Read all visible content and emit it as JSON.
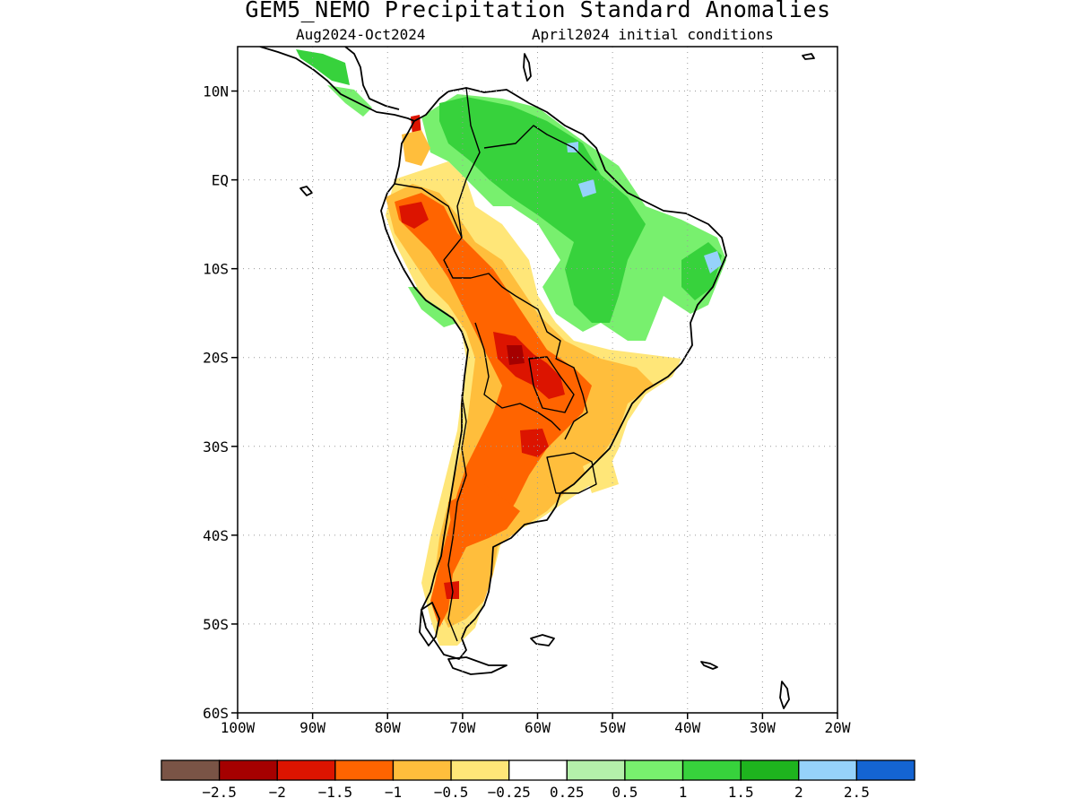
{
  "title": "GEM5_NEMO Precipitation Standard Anomalies",
  "subtitle_left": "Aug2024-Oct2024",
  "subtitle_right": "April2024 initial conditions",
  "map": {
    "lon_range": [
      -100,
      -20
    ],
    "lat_range": [
      -60,
      15
    ],
    "lat_ticks": [
      {
        "value": 10,
        "label": "10N"
      },
      {
        "value": 0,
        "label": "EQ"
      },
      {
        "value": -10,
        "label": "10S"
      },
      {
        "value": -20,
        "label": "20S"
      },
      {
        "value": -30,
        "label": "30S"
      },
      {
        "value": -40,
        "label": "40S"
      },
      {
        "value": -50,
        "label": "50S"
      },
      {
        "value": -60,
        "label": "60S"
      }
    ],
    "lon_ticks": [
      {
        "value": -100,
        "label": "100W"
      },
      {
        "value": -90,
        "label": "90W"
      },
      {
        "value": -80,
        "label": "80W"
      },
      {
        "value": -70,
        "label": "70W"
      },
      {
        "value": -60,
        "label": "60W"
      },
      {
        "value": -50,
        "label": "50W"
      },
      {
        "value": -40,
        "label": "40W"
      },
      {
        "value": -30,
        "label": "30W"
      },
      {
        "value": -20,
        "label": "20W"
      }
    ],
    "grid": "dotted"
  },
  "colorbar": {
    "colors": [
      "#7a5446",
      "#a50000",
      "#dc1400",
      "#ff6400",
      "#ffbe3c",
      "#ffe678",
      "#ffffff",
      "#b4f0aa",
      "#78f06e",
      "#37d23c",
      "#1eb41e",
      "#96d2fa",
      "#1464d2"
    ],
    "labels": [
      "-2.5",
      "-2",
      "-1.5",
      "-1",
      "-0.5",
      "-0.25",
      "0.25",
      "0.5",
      "1",
      "1.5",
      "2",
      "2.5"
    ]
  }
}
